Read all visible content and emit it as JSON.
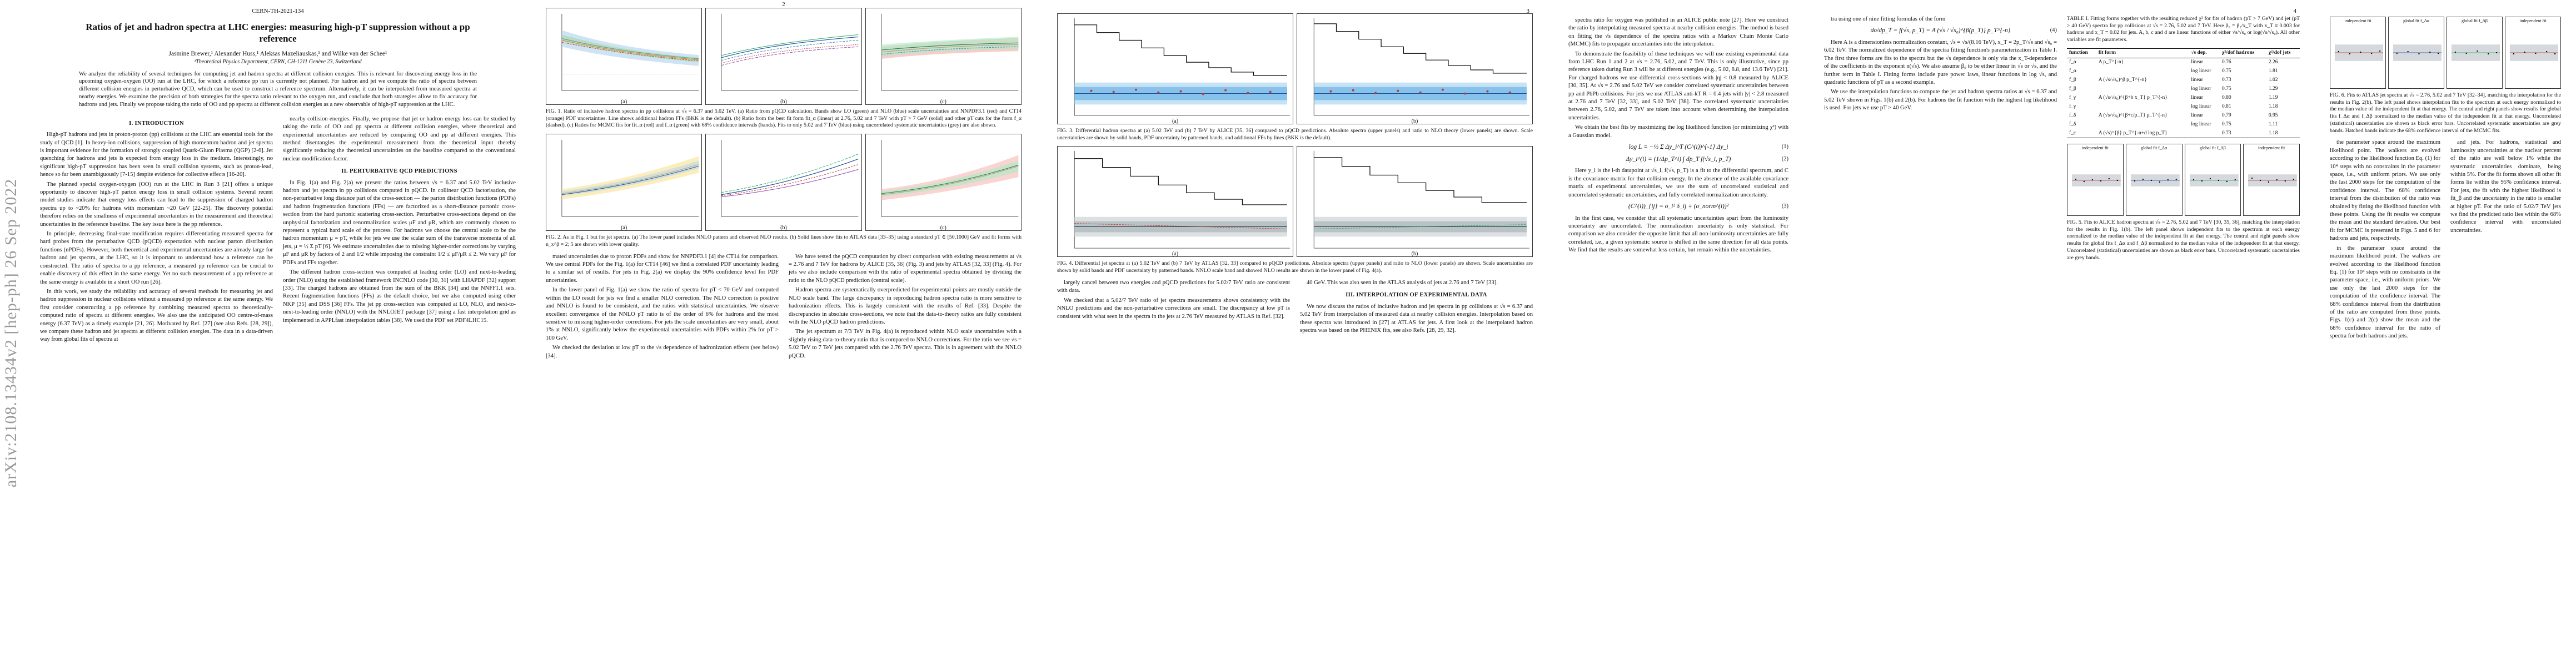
{
  "arxiv_stamp": "arXiv:2108.13434v2  [hep-ph]  26 Sep 2022",
  "page1": {
    "report_id": "CERN-TH-2021-134",
    "title": "Ratios of jet and hadron spectra at LHC energies: measuring high-pT suppression without a pp reference",
    "authors": "Jasmine Brewer,¹ Alexander Huss,¹ Aleksas Mazeliauskas,¹ and Wilke van der Schee¹",
    "affiliation": "¹Theoretical Physics Department, CERN, CH-1211 Genève 23, Switzerland",
    "abstract": "We analyze the reliability of several techniques for computing jet and hadron spectra at different collision energies. This is relevant for discovering energy loss in the upcoming oxygen-oxygen (OO) run at the LHC, for which a reference pp run is currently not planned. For hadron and jet we compute the ratio of spectra between different collision energies in perturbative QCD, which can be used to construct a reference spectrum. Alternatively, it can be interpolated from measured spectra at nearby energies. We examine the precision of both strategies for the spectra ratio relevant to the oxygen run, and conclude that both strategies allow to fix accuracy for hadrons and jets. Finally we propose taking the ratio of OO and pp spectra at different collision energies as a new observable of high-pT suppression at the LHC.",
    "sec1_head": "I.   INTRODUCTION",
    "sec1_p1": "High-pT hadrons and jets in proton-proton (pp) collisions at the LHC are essential tools for the study of QCD [1]. In heavy-ion collisions, suppression of high momentum hadron and jet spectra is important evidence for the formation of strongly coupled Quark-Gluon Plasma (QGP) [2-6]. Jet quenching for hadrons and jets is expected from energy loss in the medium. Interestingly, no significant high-pT suppression has been seen in small collision systems, such as proton-lead, hence so far been unambiguously [7-15] despite evidence for collective effects [16-20].",
    "sec1_p2": "The planned special oxygen-oxygen (OO) run at the LHC in Run 3 [21] offers a unique opportunity to discover high-pT parton energy loss in small collision systems. Several recent model studies indicate that energy loss effects can lead to the suppression of charged hadron spectra up to ~20% for hadrons with momentum ~20 GeV [22-25]. The discovery potential therefore relies on the smallness of experimental uncertainties in the measurement and theoretical uncertainties in the reference baseline. The key issue here is the pp reference.",
    "sec1_p3": "In principle, decreasing final-state modification requires differentiating measured spectra for hard probes from the perturbative QCD (pQCD) expectation with nuclear parton distribution functions (nPDFs). However, both theoretical and experimental uncertainties are already large for hadron and jet spectra, at the LHC, so it is important to understand how a reference can be constructed. The ratio of spectra to a pp reference, a measured pp reference can be crucial to enable discovery of this effect in the same energy. Yet no such measurement of a pp reference at the same energy is available in a short OO run [26].",
    "sec1_p4": "In this work, we study the reliability and accuracy of several methods for measuring jet and hadron suppression in nuclear collisions without a measured pp reference at the same energy. We first consider constructing a pp reference by combining measured spectra to theoretically-computed ratio of spectra at different energies. We also use the anticipated OO centre-of-mass energy (6.37 TeV) as a timely example [21, 26]. Motivated by Ref. [27] (see also Refs. [28, 29]), we compare these hadron and jet spectra at different collision energies. The data in a data-driven way from global fits of spectra at",
    "sec1_col2a": "nearby collision energies. Finally, we propose that jet or hadron energy loss can be studied by taking the ratio of OO and pp spectra at different collision energies, where theoretical and experimental uncertainties are reduced by comparing OO and pp at different energies. This method disentangles the experimental measurement from the theoretical input thereby significantly reducing the theoretical uncertainties on the baseline compared to the conventional nuclear modification factor.",
    "sec2_head": "II.   PERTURBATIVE QCD PREDICTIONS",
    "sec2_p1": "In Fig. 1(a) and Fig. 2(a) we present the ratios between √s = 6.37 and 5.02 TeV inclusive hadron and jet spectra in pp collisions computed in pQCD. In collinear QCD factorisation, the non-perturbative long distance part of the cross-section — the parton distribution functions (PDFs) and hadron fragmentation functions (FFs) — are factorized as a short-distance partonic cross-section from the hard partonic scattering cross-section. Perturbative cross-sections depend on the unphysical factorization and renormalization scales μF and μR, which are commonly chosen to represent a typical hard scale of the process. For hadrons we choose the central scale to be the hadron momentum μ = pT, while for jets we use the scalar sum of the transverse momenta of all jets, μ = ½ Σ pT [6]. We estimate uncertainties due to missing higher-order corrections by varying μF and μR by factors of 2 and 1/2 while imposing the constraint 1/2 ≤ μF/μR ≤ 2. We vary μF for PDFs and FFs together.",
    "sec2_p2": "The different hadron cross-section was computed at leading order (LO) and next-to-leading order (NLO) using the established framework INCNLO code [30, 31] with LHAPDF [32] support [33]. The charged hadrons are obtained from the sum of the BKK [34] and the NNFF1.1 sets. Recent fragmentation functions (FFs) as the default choice, but we also computed using other NKP [35] and DSS [36] FFs. The jet pp cross-section was computed at LO, NLO, and next-to-next-to-leading order (NNLO) with the NNLOJET package [37] using a fast interpolation grid as implemented in APPLfast interpolation tables [38]. We used the PDF set PDF4LHC15.",
    "fig1_caption": "FIG. 1. Ratio of inclusive hadron spectra in pp collisions at √s = 6.37 and 5.02 TeV. (a) Ratio from pQCD calculation. Bands show LO (green) and NLO (blue) scale uncertainties and NNPDF3.1 (red) and CT14 (orange) PDF uncertainties. Line shows additional hadron FFs (BKK is the default). (b) Ratio from the best fit form fit_α (linear) at 2.76, 5.02 and 7 TeV with pT > 7 GeV (solid) and other pT cuts for the form f_α (dashed). (c) Ratios for MCMC fits for fit_α (red) and f_α (green) with 68% confidence intervals (bands). Fits to only 5.02 and 7 TeV (blue) using uncorrelated systematic uncertainties (grey) are also shown.",
    "fig2_caption": "FIG. 2. As in Fig. 1 but for jet spectra. (a) The lower panel includes NNLO pattern and observed NLO results. (b) Solid lines show fits to ATLAS data [33–35] using a standard pT ∈ [50,1000] GeV and fit forms with n_x^β = 2; 5 are shown with lower quality."
  },
  "page2": {
    "page_num": "2",
    "col1_p1": "mated uncertainties due to proton PDFs and show for NNPDF3.1 [4] the CT14 for comparison. We use central PDFs for the Fig. 1(a) for CT14 [46] we find a correlated PDF uncertainty leading to a similar set of results. For jets in Fig. 2(a) we display the 90% confidence level for PDF uncertainties.",
    "col1_p2": "In the lower panel of Fig. 1(a) we show the ratio of spectra for pT < 70 GeV and computed within the LO result for jets we find a smaller NLO correction. The NLO correction is positive and NNLO is found to be consistent, and the ratios with statistical uncertainties. We observe excellent convergence of the NNLO pT ratio is of the order of 6% for hadrons and the most sensitive to missing higher-order corrections. For jets the scale uncertainties are very small, about 1% at NNLO, significantly below the experimental uncertainties with PDFs within 2% for pT > 100 GeV.",
    "col1_p3": "We checked the deviation at low pT to the √s dependence of hadronization effects (see below) [34].",
    "col2_p1": "We have tested the pQCD computation by direct comparison with existing measurements at √s = 2.76 and 7 TeV for hadrons by ALICE [35, 36] (Fig. 3) and jets by ATLAS [32, 33] (Fig. 4). For jets we also include comparison with the ratio of experimental spectra obtained by dividing the ratio to the NLO pQCD prediction (central scale).",
    "col2_p2": "Hadron spectra are systematically overpredicted for experimental points are mostly outside the NLO scale band. The large discrepancy in reproducing hadron spectra ratio is more sensitive to hadronization effects. This is largely consistent with the results of Ref. [33]. Despite the discrepancies in absolute cross-sections, we note that the data-to-theory ratios are fully consistent with the NLO pQCD hadron predictions.",
    "col2_p3": "The jet spectrum at 7/3 TeV in Fig. 4(a) is reproduced within NLO scale uncertainties with a slightly rising data-to-theory ratio that is compared to NNLO corrections. For the ratio we see √s = 5.02 TeV to 7 TeV jets compared with the 2.76 TeV spectra. This is in agreement with the NNLO pQCD.",
    "fig3_caption": "FIG. 3. Differential hadron spectra at (a) 5.02 TeV and (b) 7 TeV by ALICE [35, 36] compared to pQCD predictions. Absolute spectra (upper panels) and ratio to NLO theory (lower panels) are shown. Scale uncertainties are shown by solid bands, PDF uncertainty by patterned bands, and additional FFs by lines (BKK is the default).",
    "fig4_caption": "FIG. 4. Differential jet spectra at (a) 5.02 TeV and (b) 7 TeV by ATLAS [32, 33] compared to pQCD predictions. Absolute spectra (upper panels) and ratio to NLO (lower panels) are shown. Scale uncertainties are shown by solid bands and PDF uncertainty by patterned bands. NNLO scale band and showed NLO results are shown in the lower panel of Fig. 4(a)."
  },
  "page3": {
    "page_num": "3",
    "col1_p1": "largely cancel between two energies and pQCD predictions for 5.02/7 TeV ratio are consistent with data.",
    "col1_p2": "We checked that a 5.02/7 TeV ratio of jet spectra measurements shows consistency with the NNLO predictions and the non-perturbative corrections are small. The discrepancy at low pT is consistent with what seen in the spectra in the jets at 2.76 TeV measured by ATLAS in Ref. [32].",
    "col2_p1": "40 GeV. This was also seen in the ATLAS analysis of jets at 2.76 and 7 TeV [33].",
    "sec3_head": "III.   INTERPOLATION OF EXPERIMENTAL DATA",
    "col2_p2": "We now discuss the ratios of inclusive hadron and jet spectra in pp collisions at √s = 6.37 and 5.02 TeV from interpolation of measured data at nearby collision energies. Interpolation based on these spectra was introduced in [27] at ATLAS for jets. A first look at the interpolated hadron spectra was based on the PHENIX fits, see also Refs. [28, 29, 32].",
    "col3_p1": "spectra ratio for oxygen was published in an ALICE public note [27]. Here we construct the ratio by interpolating measured spectra at nearby collision energies. The method is based on fitting the √s dependence of the spectra ratios with a Markov Chain Monte Carlo (MCMC) fits to propagate uncertainties into the interpolation.",
    "col3_p2": "To demonstrate the feasibility of these techniques we will use existing experimental data from LHC Run 1 and 2 at √s = 2.76, 5.02, and 7 TeV. This is only illustrative, since pp reference taken during Run 3 will be at different energies (e.g., 5.02, 8.8, and 13.6 TeV) [21]. For charged hadrons we use differential cross-sections with |η| < 0.8 measured by ALICE [30, 35]. At √s = 2.76 and 5.02 TeV we consider correlated systematic uncertainties between pp and PbPb collisions. For jets we use ATLAS anti-kT R = 0.4 jets with |y| < 2.8 measured at 2.76 and 7 TeV [32, 33], and 5.02 TeV [38]. The correlated systematic uncertainties between 2.76, 5.02, and 7 TeV are taken into account when determining the interpolation uncertainties.",
    "col3_p3": "We obtain the best fits by maximizing the log likelihood function (or minimizing χ²) with a Gaussian model.",
    "eq1": "log L = −½ Σ Δy_i^T (C^(i))^{-1} Δy_i",
    "eq1_num": "(1)",
    "eq2": "Δy_i^(i) = (1/Δp_T^i) ∫ dp_T f(√s_i, p_T)",
    "eq2_num": "(2)",
    "col3_p4": "Here y_i is the i-th datapoint at √s_i, f(√s, p_T) is a fit to the differential spectrum, and C is the covariance matrix for that collision energy. In the absence of the available covariance matrix of experimental uncertainties, we use the sum of uncorrelated statistical and uncorrelated systematic uncertainties, and fully correlated normalization uncertainty.",
    "eq3": "(C^(i))_{ij} = σ_i² δ_ij + (σ_norm^(i))²",
    "eq3_num": "(3)",
    "col3_p5": "In the first case, we consider that all systematic uncertainties apart from the luminosity uncertainty are uncorrelated. The normalization uncertainty is only statistical. For comparison we also consider the opposite limit that all non-luminosity uncertainties are fully correlated, i.e., a given systematic source is shifted in the same direction for all data points. We find that the results are somewhat less certain, but remain within the uncertainties."
  },
  "page4": {
    "page_num": "4",
    "col1_p1": "tra using one of nine fitting formulas of the form",
    "eq4": "dσ/dp_T = f(√s, p_T) = A (√s / √s₀)^{β(p_T)} p_T^{-n}",
    "eq4_num": "(4)",
    "col1_p2": "Here A is a dimensionless normalization constant, √s = √s/(8.16 TeV), x_T = 2p_T/√s and √s₀ = 6.02 TeV. The normalized dependence of the spectra fitting function's parameterization in Table I. The first three forms are fits to the spectra but the √s dependence is only via the x_T-dependence of the coefficients in the exponent n(√s). We also assume β₀ to be either linear in √s or √s, and the further term in Table I. Fitting forms include pure power laws, linear functions in log √s, and quadratic functions of pT as a second example.",
    "col1_p3": "We use the interpolation functions to compute the jet and hadron spectra ratios at √s = 6.37 and 5.02 TeV shown in Figs. 1(b) and 2(b). For hadrons the fit function with the highest log likelihood is used. For jets we use pT > 40 GeV.",
    "col2_p1": "the parameter space around the maximum likelihood point. The walkers are evolved according to the likelihood function Eq. (1) for 10⁴ steps with no constraints in the parameter space, i.e., with uniform priors. We use only the last 2000 steps for the computation of the confidence interval. The 68% confidence interval from the distribution of the ratio was obtained by fitting the likelihood function with these points. Using the fit results we compute the mean and the standard deviation. Our best fit for MCMC is presented in Figs. 5 and 6 for hadrons and jets, respectively.",
    "fig5_caption": "FIG. 5. Fits to ALICE hadron spectra at √s = 2.76, 5.02 and 7 TeV [30, 35, 36], matching the interpolation for the results in Fig. 1(b). The left panel shows independent fits to the spectrum at each energy normalized to the median value of the independent fit at that energy. The central and right panels show results for global fits f_Δα and f_Δβ normalized to the median value of the independent fit at that energy. Uncorrelated (statistical) uncertainties are shown as black error bars. Uncorrelated systematic uncertainties are grey bands.",
    "fig6_caption": "FIG. 6. Fits to ATLAS jet spectra at √s = 2.76, 5.02 and 7 TeV [32–34], matching the interpolation for the results in Fig. 2(b). The left panel shows interpolation fits to the spectrum at each energy normalized to the median value of the independent fit at that energy. The central and right panels show results for global fits f_Δα and f_Δβ normalized to the median value of the independent fit at that energy. Uncorrelated (statistical) uncertainties are shown as black error bars. Uncorrelated systematic uncertainties are grey bands. Hatched bands indicate the 68% confidence interval of the MCMC fits.",
    "col3_p1": "in the parameter space around the maximum likelihood point. The walkers are evolved according to the likelihood function Eq. (1) for 10⁴ steps with no constraints in the parameter space, i.e., with uniform priors. We use only the last 2000 steps for the computation of the confidence interval. The 68% confidence interval from the distribution of the ratio are computed from these points. Figs. 1(c) and 2(c) show the mean and the 68% confidence interval for the ratio of spectra for both hadrons and jets.",
    "col4_p1": "and jets. For hadrons, statistical and luminosity uncertainties at the nuclear percent of the ratio are well below 1% while the systematic uncertainties dominate, being within 5%. For the fit forms shown all other fit forms lie within the 95% confidence interval. For jets, the fit with the highest likelihood is fit_β and the uncertainty in the ratio is smaller at higher pT. For the ratio of 5.02/7 TeV jets we find the predicted ratio lies within the 68% confidence interval with uncorrelated uncertainties."
  },
  "table1": {
    "caption": "TABLE I. Fitting forms together with the resulting reduced χ² for fits of hadron (pT > 7 GeV) and jet (pT > 40 GeV) spectra for pp collisions at √s = 2.76, 5.02 and 7 TeV. Here β₀ = β₁/x_T with x_T ≡ 0.003 for hadrons and x_T ≡ 0.02 for jets. A, b, c and d are linear functions of either √s/√s₀ or log(√s/√s₀). All other variables are fit parameters.",
    "headers": [
      "function",
      "fit form",
      "√s dep.",
      "χ²/dof hadrons",
      "χ²/dof jets"
    ],
    "rows": [
      [
        "f_α",
        "A p_T^{-n}",
        "linear",
        "0.76",
        "2.26"
      ],
      [
        "f_α",
        "",
        "log linear",
        "0.75",
        "1.81"
      ],
      [
        "f_β",
        "A (√s/√s₀)^β p_T^{-n}",
        "linear",
        "0.73",
        "1.02"
      ],
      [
        "f_β",
        "",
        "log linear",
        "0.75",
        "1.29"
      ],
      [
        "f_γ",
        "A (√s/√s₀)^{β+b x_T} p_T^{-n}",
        "linear",
        "0.80",
        "1.19"
      ],
      [
        "f_γ",
        "",
        "log linear",
        "0.81",
        "1.18"
      ],
      [
        "f_δ",
        "A (√s/√s₀)^{β+c/p_T} p_T^{-n}",
        "linear",
        "0.79",
        "0.95"
      ],
      [
        "f_δ",
        "",
        "log linear",
        "0.75",
        "1.11"
      ],
      [
        "f_ε",
        "A (√s)^{β} p_T^{-n+d log p_T}",
        "",
        "0.73",
        "1.18"
      ]
    ]
  },
  "fig_labels": {
    "a": "(a)",
    "b": "(b)",
    "c": "(c)",
    "pt_axis": "pT [GeV]",
    "ratio_axis": "ratio 6.37/5.02 TeV",
    "independent_fit": "independent fit",
    "global_fit_a": "global fit f_Δα",
    "global_fit_b": "global fit f_Δβ"
  }
}
